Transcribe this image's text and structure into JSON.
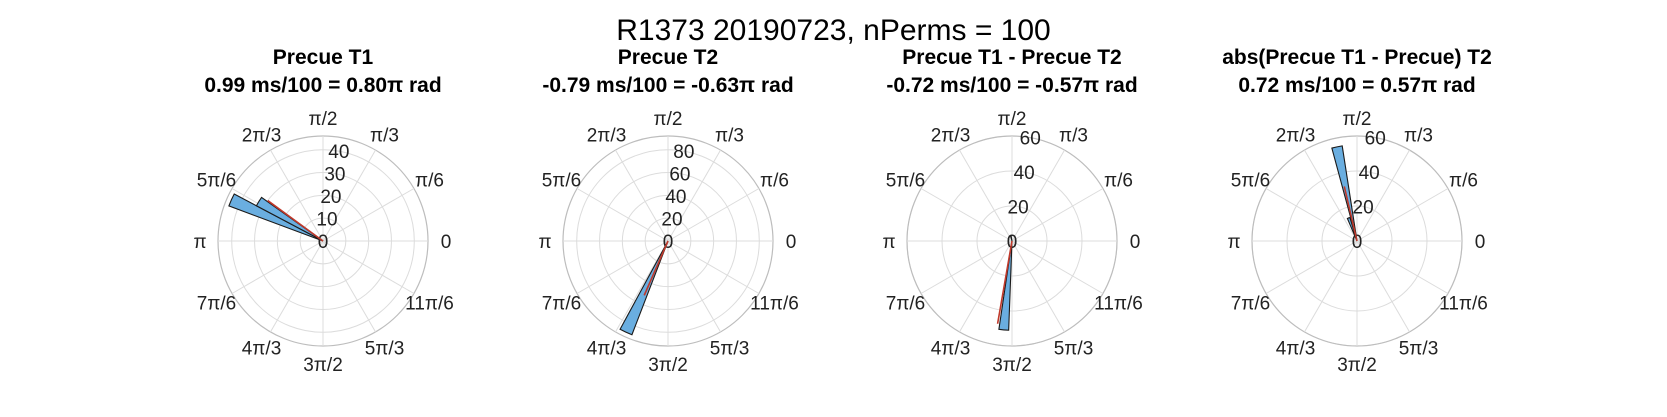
{
  "figure": {
    "suptitle": "R1373 20190723, nPerms = 100",
    "colors": {
      "bar_fill": "#6aaee0",
      "bar_edge": "#1a1a1a",
      "mean_vector": "#c0392b",
      "grid": "#dcdcdc"
    }
  },
  "chart_data": [
    {
      "type": "polar_histogram",
      "title": "Precue T1",
      "subtitle": "0.99 ms/100 = 0.80π rad",
      "theta_tick_labels": [
        "0",
        "π/6",
        "π/3",
        "π/2",
        "2π/3",
        "5π/6",
        "π",
        "7π/6",
        "4π/3",
        "3π/2",
        "5π/3",
        "11π/6"
      ],
      "r_ticks": [
        0,
        10,
        20,
        30,
        40
      ],
      "r_tick_labels": [
        "0",
        "10",
        "20",
        "30",
        "40"
      ],
      "rlim": [
        0,
        46
      ],
      "bars": [
        {
          "theta_center_rad": 2.72,
          "width_rad": 0.13,
          "count": 44
        },
        {
          "theta_center_rad": 2.59,
          "width_rad": 0.13,
          "count": 33
        }
      ],
      "mean_vector": {
        "theta_rad": 2.51,
        "length": 30
      }
    },
    {
      "type": "polar_histogram",
      "title": "Precue T2",
      "subtitle": "-0.79 ms/100 = -0.63π rad",
      "theta_tick_labels": [
        "0",
        "π/6",
        "π/3",
        "π/2",
        "2π/3",
        "5π/6",
        "π",
        "7π/6",
        "4π/3",
        "3π/2",
        "5π/3",
        "11π/6"
      ],
      "r_ticks": [
        0,
        20,
        40,
        60,
        80
      ],
      "r_tick_labels": [
        "0",
        "20",
        "40",
        "60",
        "80"
      ],
      "rlim": [
        0,
        92
      ],
      "bars": [
        {
          "theta_center_rad": 4.28,
          "width_rad": 0.13,
          "count": 88
        }
      ],
      "mean_vector": {
        "theta_rad": 4.3,
        "length": 52
      }
    },
    {
      "type": "polar_histogram",
      "title": "Precue T1 - Precue T2",
      "subtitle": "-0.72 ms/100 = -0.57π rad",
      "theta_tick_labels": [
        "0",
        "π/6",
        "π/3",
        "π/2",
        "2π/3",
        "5π/6",
        "π",
        "7π/6",
        "4π/3",
        "3π/2",
        "5π/3",
        "11π/6"
      ],
      "r_ticks": [
        0,
        20,
        40,
        60
      ],
      "r_tick_labels": [
        "0",
        "20",
        "40",
        "60"
      ],
      "rlim": [
        0,
        60
      ],
      "bars": [
        {
          "theta_center_rad": 4.62,
          "width_rad": 0.11,
          "count": 51
        },
        {
          "theta_center_rad": 1.8,
          "width_rad": 0.11,
          "count": 3
        }
      ],
      "mean_vector": {
        "theta_rad": 4.54,
        "length": 48
      }
    },
    {
      "type": "polar_histogram",
      "title": "abs(Precue T1 - Precue) T2",
      "subtitle": "0.72 ms/100 = 0.57π rad",
      "theta_tick_labels": [
        "0",
        "π/6",
        "π/3",
        "π/2",
        "2π/3",
        "5π/6",
        "π",
        "7π/6",
        "4π/3",
        "3π/2",
        "5π/3",
        "11π/6"
      ],
      "r_ticks": [
        0,
        20,
        40,
        60
      ],
      "r_tick_labels": [
        "0",
        "20",
        "40",
        "60"
      ],
      "rlim": [
        0,
        60
      ],
      "bars": [
        {
          "theta_center_rad": 1.78,
          "width_rad": 0.11,
          "count": 55
        },
        {
          "theta_center_rad": 1.92,
          "width_rad": 0.11,
          "count": 14
        }
      ],
      "mean_vector": {
        "theta_rad": 1.8,
        "length": 32
      }
    }
  ]
}
